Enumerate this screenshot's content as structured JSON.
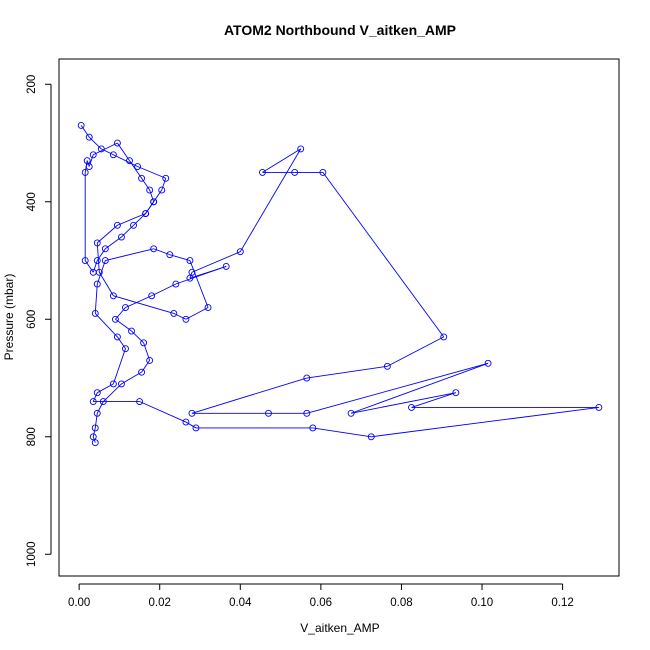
{
  "chart_data": {
    "type": "line",
    "title": "ATOM2 Northbound V_aitken_AMP",
    "xlabel": "V_aitken_AMP",
    "ylabel": "Pressure (mbar)",
    "xlim": [
      -0.005,
      0.134
    ],
    "ylim": [
      1037,
      157
    ],
    "y_reversed": true,
    "x_ticks": [
      0.0,
      0.02,
      0.04,
      0.06,
      0.08,
      0.1,
      0.12
    ],
    "x_tick_labels": [
      "0.00",
      "0.02",
      "0.04",
      "0.06",
      "0.08",
      "0.10",
      "0.12"
    ],
    "y_ticks": [
      200,
      400,
      600,
      800,
      1000
    ],
    "y_tick_labels": [
      "200",
      "400",
      "600",
      "800",
      "1000"
    ],
    "grid": false,
    "series": [
      {
        "color": "#0000ff",
        "marker": "open-circle",
        "x": [
          0.004,
          0.0035,
          0.004,
          0.0045,
          0.006,
          0.0105,
          0.0155,
          0.0175,
          0.016,
          0.013,
          0.009,
          0.0115,
          0.018,
          0.024,
          0.0365,
          0.0275,
          0.028,
          0.04,
          0.055,
          0.0455,
          0.0535,
          0.0605,
          0.0905,
          0.0765,
          0.0565,
          0.028,
          0.047,
          0.0565,
          0.1015,
          0.0675,
          0.0935,
          0.0825,
          0.129,
          0.0725,
          0.058,
          0.029,
          0.0265,
          0.015,
          0.0035,
          0.0045,
          0.0085,
          0.0115,
          0.0095,
          0.004,
          0.0045,
          0.0065,
          0.0185,
          0.0225,
          0.0275,
          0.032,
          0.0265,
          0.0235,
          0.0085,
          0.005,
          0.0045,
          0.0095,
          0.0165,
          0.0185,
          0.0175,
          0.0155,
          0.0125,
          0.0095,
          0.0035,
          0.0025,
          0.002,
          0.0015,
          0.0015,
          0.0035,
          0.0045,
          0.0065,
          0.0105,
          0.0135,
          0.0165,
          0.0185,
          0.0205,
          0.0215,
          0.0145,
          0.0085,
          0.0055,
          0.0025,
          0.0005
        ],
        "y": [
          810,
          800,
          785,
          760,
          740,
          710,
          690,
          670,
          640,
          620,
          600,
          580,
          560,
          540,
          510,
          530,
          520,
          485,
          310,
          350,
          350,
          350,
          630,
          680,
          700,
          760,
          760,
          760,
          675,
          760,
          725,
          750,
          750,
          800,
          785,
          785,
          775,
          740,
          740,
          725,
          710,
          650,
          630,
          590,
          540,
          500,
          480,
          490,
          500,
          580,
          600,
          590,
          560,
          520,
          470,
          440,
          420,
          400,
          380,
          360,
          330,
          300,
          320,
          340,
          330,
          350,
          500,
          520,
          500,
          480,
          460,
          440,
          420,
          400,
          380,
          360,
          340,
          320,
          310,
          290,
          270
        ]
      }
    ]
  }
}
